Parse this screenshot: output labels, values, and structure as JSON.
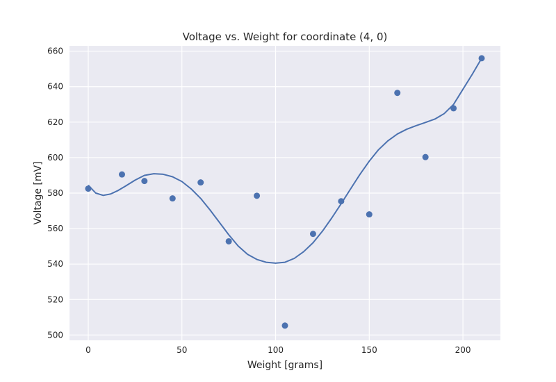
{
  "chart_data": {
    "type": "scatter",
    "title": "Voltage vs. Weight for coordinate (4, 0)",
    "xlabel": "Weight [grams]",
    "ylabel": "Voltage [mV]",
    "xlim": [
      -10,
      220
    ],
    "ylim": [
      497,
      663
    ],
    "xticks": [
      0,
      50,
      100,
      150,
      200
    ],
    "yticks": [
      500,
      520,
      540,
      560,
      580,
      600,
      620,
      640,
      660
    ],
    "xtick_labels": [
      "0",
      "50",
      "100",
      "150",
      "200"
    ],
    "ytick_labels": [
      "500",
      "520",
      "540",
      "560",
      "580",
      "600",
      "620",
      "640",
      "660"
    ],
    "grid": true,
    "series": [
      {
        "name": "measurements",
        "style": "markers",
        "color": "#4c72b0",
        "x": [
          0,
          18,
          30,
          45,
          60,
          75,
          90,
          105,
          120,
          135,
          150,
          165,
          180,
          195,
          210
        ],
        "y": [
          582.5,
          590.5,
          586.8,
          577,
          586,
          552.8,
          578.5,
          505.3,
          557,
          575.4,
          568,
          636.5,
          600.3,
          627.8,
          656
        ]
      },
      {
        "name": "fit",
        "style": "line",
        "color": "#4c72b0",
        "x": [
          0,
          4,
          8,
          12,
          16,
          20,
          25,
          30,
          35,
          40,
          45,
          50,
          55,
          60,
          65,
          70,
          75,
          80,
          85,
          90,
          95,
          100,
          105,
          110,
          115,
          120,
          125,
          130,
          135,
          140,
          145,
          150,
          155,
          160,
          165,
          170,
          175,
          180,
          185,
          190,
          195,
          200,
          205,
          210
        ],
        "y": [
          584.5,
          580,
          578.7,
          579.5,
          581.5,
          584,
          587.3,
          590,
          590.9,
          590.6,
          589.2,
          586.5,
          582.3,
          577,
          570.5,
          563.5,
          556.5,
          550.2,
          545.5,
          542.6,
          541,
          540.5,
          541,
          543.2,
          547,
          552,
          558.5,
          566,
          574,
          582.3,
          590.5,
          598,
          604.5,
          609.5,
          613.3,
          616,
          618,
          619.8,
          621.7,
          624.8,
          630,
          638.5,
          647,
          656
        ]
      }
    ]
  }
}
